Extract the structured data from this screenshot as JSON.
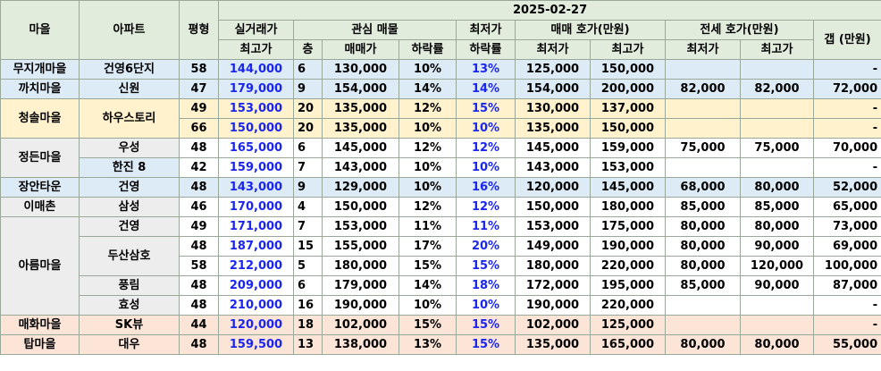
{
  "header": {
    "date": "2025-02-27",
    "village": "마을",
    "apartment": "아파트",
    "pyeong": "평형",
    "real_trade_top": "실거래가",
    "real_trade_sub": "최고가",
    "interest_listing": "관심 매물",
    "floor": "층",
    "sale_price": "매매가",
    "decline_rate": "하락률",
    "lowest_top": "최저가",
    "lowest_sub": "하락률",
    "sale_quote": "매매 호가(만원)",
    "jeonse_quote": "전세 호가(만원)",
    "min": "최저가",
    "max": "최고가",
    "gap": "갭 (만원)"
  },
  "rows": [
    {
      "village": "무지개마을",
      "apt": "건영6단지",
      "py": "58",
      "top": "144,000",
      "floor": "6",
      "price": "130,000",
      "dec": "10%",
      "ldec": "13%",
      "smin": "125,000",
      "smax": "150,000",
      "jmin": "",
      "jmax": "",
      "gap": "-",
      "bg": "bg-blue",
      "vbg": "bg-blue",
      "abg": "bg-blue"
    },
    {
      "village": "까치마을",
      "apt": "신원",
      "py": "47",
      "top": "179,000",
      "floor": "9",
      "price": "154,000",
      "dec": "14%",
      "ldec": "14%",
      "smin": "154,000",
      "smax": "200,000",
      "jmin": "82,000",
      "jmax": "82,000",
      "gap": "72,000",
      "bg": "bg-blue",
      "vbg": "bg-blue",
      "abg": "bg-blue"
    },
    {
      "village": "청솔마을",
      "apt": "하우스토리",
      "py": "49",
      "top": "153,000",
      "floor": "20",
      "price": "135,000",
      "dec": "12%",
      "ldec": "15%",
      "smin": "130,000",
      "smax": "137,000",
      "jmin": "",
      "jmax": "",
      "gap": "-",
      "bg": "bg-yellow",
      "vbg": "bg-yellow",
      "abg": "bg-yellow"
    },
    {
      "village": "",
      "apt": "",
      "py": "66",
      "top": "150,000",
      "floor": "20",
      "price": "135,000",
      "dec": "10%",
      "ldec": "10%",
      "smin": "135,000",
      "smax": "150,000",
      "jmin": "",
      "jmax": "",
      "gap": "-",
      "bg": "bg-yellow",
      "vbg": "bg-yellow",
      "abg": "bg-yellow"
    },
    {
      "village": "정든마을",
      "apt": "우성",
      "py": "48",
      "top": "165,000",
      "floor": "6",
      "price": "145,000",
      "dec": "12%",
      "ldec": "12%",
      "smin": "145,000",
      "smax": "159,000",
      "jmin": "75,000",
      "jmax": "75,000",
      "gap": "70,000",
      "bg": "bg-white",
      "vbg": "bg-gray",
      "abg": "bg-gray"
    },
    {
      "village": "",
      "apt": "한진 8",
      "py": "42",
      "top": "159,000",
      "floor": "7",
      "price": "143,000",
      "dec": "10%",
      "ldec": "10%",
      "smin": "143,000",
      "smax": "153,000",
      "jmin": "",
      "jmax": "",
      "gap": "-",
      "bg": "bg-white",
      "vbg": "bg-gray",
      "abg": "bg-blue"
    },
    {
      "village": "장안타운",
      "apt": "건영",
      "py": "48",
      "top": "143,000",
      "floor": "9",
      "price": "129,000",
      "dec": "10%",
      "ldec": "16%",
      "smin": "120,000",
      "smax": "145,000",
      "jmin": "68,000",
      "jmax": "80,000",
      "gap": "52,000",
      "bg": "bg-blue",
      "vbg": "bg-blue",
      "abg": "bg-blue"
    },
    {
      "village": "이매촌",
      "apt": "삼성",
      "py": "46",
      "top": "170,000",
      "floor": "4",
      "price": "150,000",
      "dec": "12%",
      "ldec": "12%",
      "smin": "150,000",
      "smax": "180,000",
      "jmin": "85,000",
      "jmax": "85,000",
      "gap": "65,000",
      "bg": "bg-white",
      "vbg": "bg-gray",
      "abg": "bg-gray"
    },
    {
      "village": "아름마을",
      "apt": "건영",
      "py": "49",
      "top": "171,000",
      "floor": "7",
      "price": "153,000",
      "dec": "11%",
      "ldec": "11%",
      "smin": "153,000",
      "smax": "175,000",
      "jmin": "80,000",
      "jmax": "80,000",
      "gap": "73,000",
      "bg": "bg-white",
      "vbg": "bg-gray",
      "abg": "bg-gray"
    },
    {
      "village": "",
      "apt": "두산삼호",
      "py": "48",
      "top": "187,000",
      "floor": "15",
      "price": "155,000",
      "dec": "17%",
      "ldec": "20%",
      "smin": "149,000",
      "smax": "190,000",
      "jmin": "80,000",
      "jmax": "90,000",
      "gap": "69,000",
      "bg": "bg-white",
      "vbg": "bg-gray",
      "abg": "bg-gray"
    },
    {
      "village": "",
      "apt": "",
      "py": "58",
      "top": "212,000",
      "floor": "5",
      "price": "180,000",
      "dec": "15%",
      "ldec": "15%",
      "smin": "180,000",
      "smax": "220,000",
      "jmin": "80,000",
      "jmax": "120,000",
      "gap": "100,000",
      "bg": "bg-white",
      "vbg": "bg-gray",
      "abg": "bg-gray"
    },
    {
      "village": "",
      "apt": "풍림",
      "py": "48",
      "top": "209,000",
      "floor": "6",
      "price": "179,000",
      "dec": "14%",
      "ldec": "18%",
      "smin": "172,000",
      "smax": "195,000",
      "jmin": "85,000",
      "jmax": "90,000",
      "gap": "87,000",
      "bg": "bg-white",
      "vbg": "bg-gray",
      "abg": "bg-gray"
    },
    {
      "village": "",
      "apt": "효성",
      "py": "48",
      "top": "210,000",
      "floor": "16",
      "price": "190,000",
      "dec": "10%",
      "ldec": "10%",
      "smin": "190,000",
      "smax": "220,000",
      "jmin": "",
      "jmax": "",
      "gap": "-",
      "bg": "bg-white",
      "vbg": "bg-gray",
      "abg": "bg-gray"
    },
    {
      "village": "매화마을",
      "apt": "SK뷰",
      "py": "44",
      "top": "120,000",
      "floor": "18",
      "price": "102,000",
      "dec": "15%",
      "ldec": "15%",
      "smin": "102,000",
      "smax": "125,000",
      "jmin": "",
      "jmax": "",
      "gap": "-",
      "bg": "bg-peach",
      "vbg": "bg-peach",
      "abg": "bg-peach"
    },
    {
      "village": "탑마을",
      "apt": "대우",
      "py": "48",
      "top": "159,500",
      "floor": "13",
      "price": "138,000",
      "dec": "13%",
      "ldec": "15%",
      "smin": "135,000",
      "smax": "165,000",
      "jmin": "80,000",
      "jmax": "80,000",
      "gap": "55,000",
      "bg": "bg-peach",
      "vbg": "bg-peach",
      "abg": "bg-peach"
    }
  ]
}
